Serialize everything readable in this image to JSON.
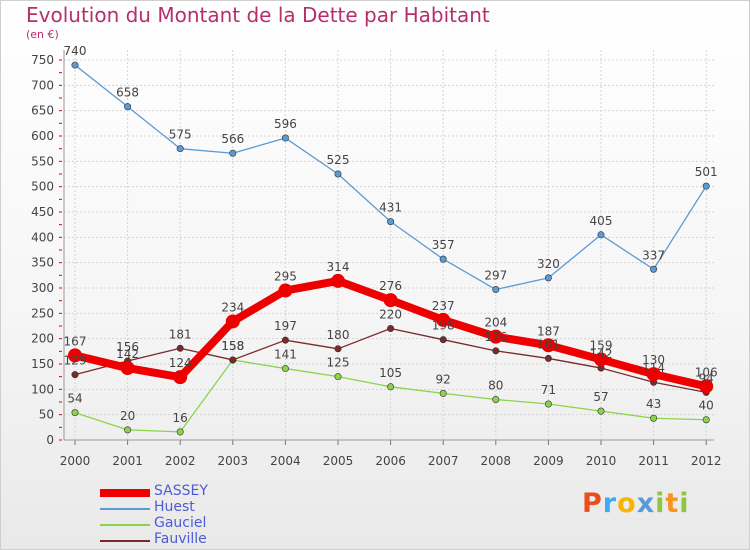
{
  "chart_data": {
    "type": "line",
    "title": "Evolution du Montant de la Dette par Habitant",
    "subtitle": "(en €)",
    "categories": [
      "2000",
      "2001",
      "2002",
      "2003",
      "2004",
      "2005",
      "2006",
      "2007",
      "2008",
      "2009",
      "2010",
      "2011",
      "2012"
    ],
    "ylim": [
      0,
      750
    ],
    "yticks": [
      0,
      50,
      100,
      150,
      200,
      250,
      300,
      350,
      400,
      450,
      500,
      550,
      600,
      650,
      700,
      750
    ],
    "grid": true,
    "legend_position": "bottom-left",
    "series": [
      {
        "name": "Huest",
        "color": "#5b9bd5",
        "values": [
          740,
          658,
          575,
          566,
          596,
          525,
          431,
          357,
          297,
          320,
          405,
          337,
          501
        ]
      },
      {
        "name": "Gauciel",
        "color": "#8bd44a",
        "values": [
          54,
          20,
          16,
          158,
          141,
          125,
          105,
          92,
          80,
          71,
          57,
          43,
          40
        ]
      },
      {
        "name": "Fauville",
        "color": "#7a2a2a",
        "values": [
          129,
          156,
          181,
          158,
          197,
          180,
          220,
          198,
          176,
          161,
          142,
          114,
          94
        ]
      },
      {
        "name": "SASSEY",
        "color": "#ee0000",
        "values": [
          167,
          142,
          124,
          234,
          295,
          314,
          276,
          237,
          204,
          187,
          159,
          130,
          106
        ]
      }
    ]
  },
  "legend": {
    "items": [
      {
        "label": "SASSEY",
        "color": "#ee0000"
      },
      {
        "label": "Huest",
        "color": "#5b9bd5"
      },
      {
        "label": "Gauciel",
        "color": "#8bd44a"
      },
      {
        "label": "Fauville",
        "color": "#7a2a2a"
      }
    ]
  },
  "brand": {
    "letters": [
      "P",
      "r",
      "o",
      "x",
      "i",
      "t",
      "i"
    ],
    "colors": [
      "#e94e1b",
      "#3fa9f5",
      "#f7b500",
      "#5b9bd5",
      "#8dc63f",
      "#f7931e",
      "#8dc63f"
    ]
  }
}
